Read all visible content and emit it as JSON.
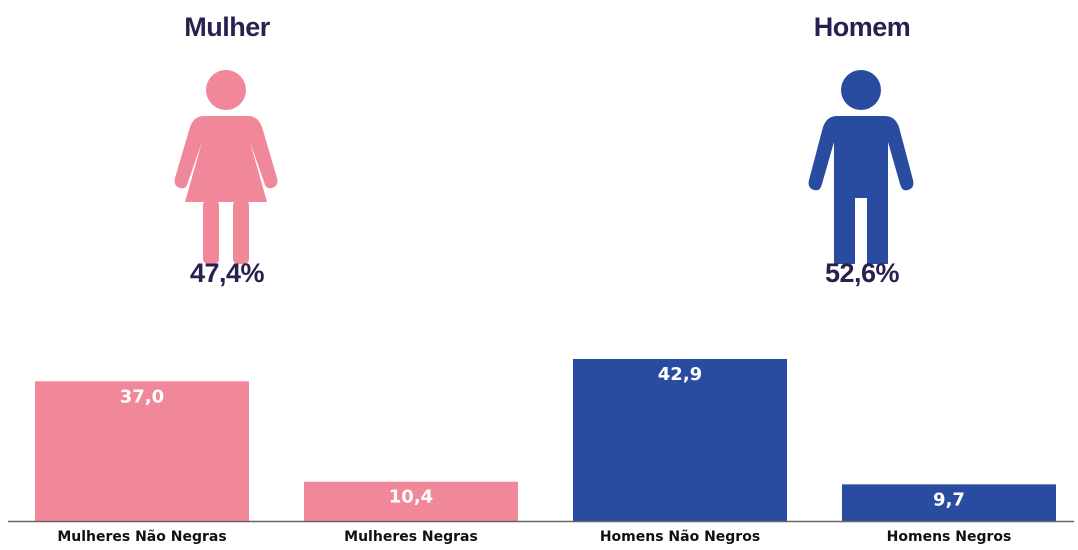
{
  "summary": {
    "female": {
      "title": "Mulher",
      "percent": "47,4%",
      "icon": "woman-icon"
    },
    "male": {
      "title": "Homem",
      "percent": "52,6%",
      "icon": "man-icon"
    }
  },
  "colors": {
    "female": "#f0889a",
    "male": "#2a4ca0",
    "text_dark": "#2b1f4e"
  },
  "chart_data": {
    "type": "bar",
    "categories": [
      "Mulheres Não Negras",
      "Mulheres Negras",
      "Homens Não Negros",
      "Homens Negros"
    ],
    "values": [
      37.0,
      10.4,
      42.9,
      9.7
    ],
    "value_labels": [
      "37,0",
      "10,4",
      "42,9",
      "9,7"
    ],
    "bar_colors": [
      "#f0889a",
      "#f0889a",
      "#2a4ca0",
      "#2a4ca0"
    ],
    "title": "",
    "xlabel": "",
    "ylabel": "",
    "ylim": [
      0,
      42.9
    ],
    "grid": false,
    "axes": "baseline only"
  }
}
